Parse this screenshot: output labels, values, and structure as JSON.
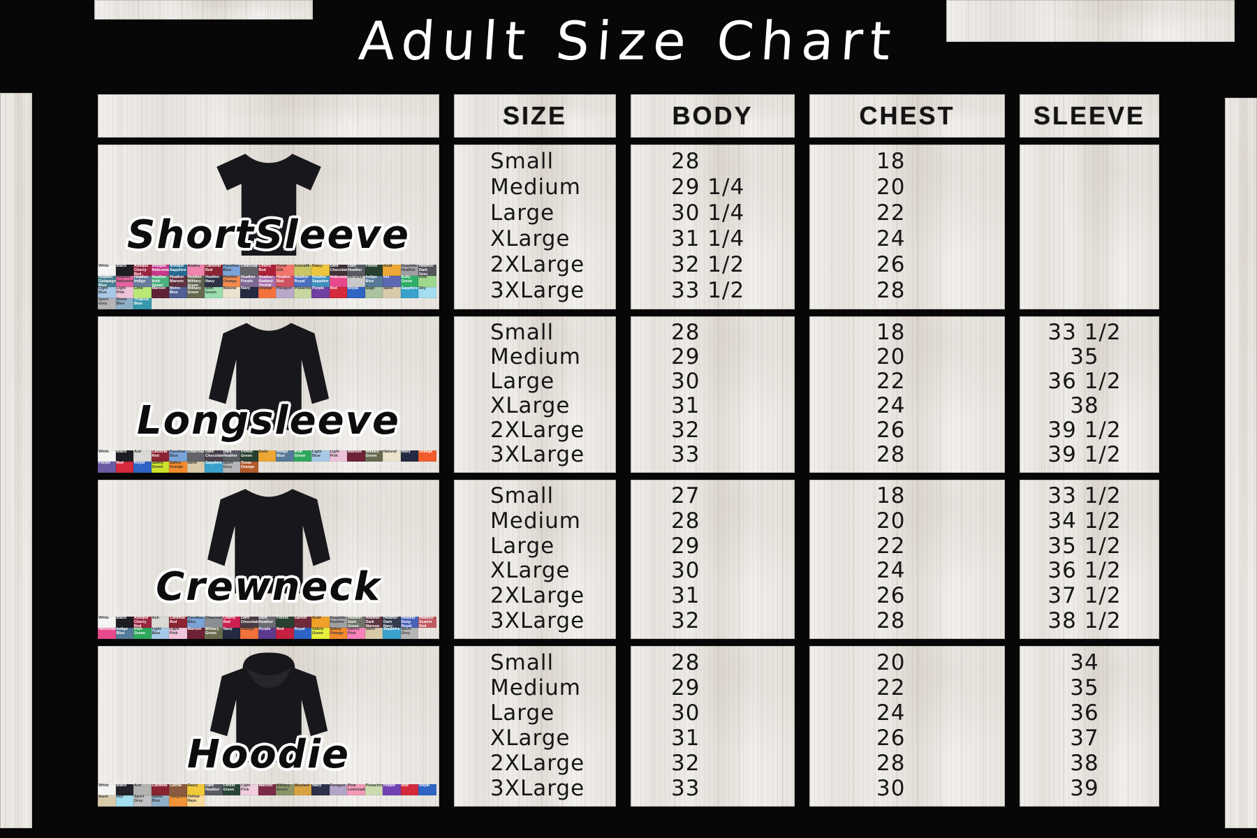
{
  "title": "Adult Size Chart",
  "columns": {
    "size": "SIZE",
    "body": "BODY",
    "chest": "CHEST",
    "sleeve": "SLEEVE"
  },
  "products": [
    {
      "name": "ShortSleeve",
      "garment": "tshirt",
      "garment_icon": "short-sleeve-tee-icon",
      "rows": [
        {
          "size": "Small",
          "body": "28",
          "chest": "18",
          "sleeve": ""
        },
        {
          "size": "Medium",
          "body": "29 1/4",
          "chest": "20",
          "sleeve": ""
        },
        {
          "size": "Large",
          "body": "30 1/4",
          "chest": "22",
          "sleeve": ""
        },
        {
          "size": "XLarge",
          "body": "31 1/4",
          "chest": "24",
          "sleeve": ""
        },
        {
          "size": "2XLarge",
          "body": "32 1/2",
          "chest": "26",
          "sleeve": ""
        },
        {
          "size": "3XLarge",
          "body": "33 1/2",
          "chest": "28",
          "sleeve": ""
        }
      ],
      "swatches": [
        {
          "label": "White",
          "color": "#f4f4f2"
        },
        {
          "label": "Black",
          "color": "#1d1d23"
        },
        {
          "label": "Antique Cherry Red",
          "color": "#992740"
        },
        {
          "label": "Antique Heliconia",
          "color": "#c53a8a"
        },
        {
          "label": "Antique Sapphire",
          "color": "#266a92"
        },
        {
          "label": "Azalea",
          "color": "#ef85ac"
        },
        {
          "label": "Cardinal Red",
          "color": "#8a2432"
        },
        {
          "label": "Carolina Blue",
          "color": "#7aa3d8"
        },
        {
          "label": "Charcoal",
          "color": "#63646a"
        },
        {
          "label": "Cherry Red",
          "color": "#ab2038"
        },
        {
          "label": "Coral Silk",
          "color": "#f4756c"
        },
        {
          "label": "Cornsilk",
          "color": "#c9c565"
        },
        {
          "label": "Daisy",
          "color": "#eec63e"
        },
        {
          "label": "Dark Chocolate",
          "color": "#413138"
        },
        {
          "label": "Dark Heather",
          "color": "#585a62"
        },
        {
          "label": "Forest",
          "color": "#27402f"
        },
        {
          "label": "Gold",
          "color": "#eda736"
        },
        {
          "label": "Graphite Heather",
          "color": "#9fa0a4"
        },
        {
          "label": "Heather Dark Grey",
          "color": "#54555c"
        },
        {
          "label": "Heather Galapagos Blue",
          "color": "#47808f"
        },
        {
          "label": "Heather Heliconia",
          "color": "#e2649e"
        },
        {
          "label": "Heather Indigo",
          "color": "#687c9e"
        },
        {
          "label": "Heather Irish Green",
          "color": "#4bb07c"
        },
        {
          "label": "Heather Maroon",
          "color": "#61323f"
        },
        {
          "label": "Heather Military Green",
          "color": "#60644f"
        },
        {
          "label": "Heather Navy",
          "color": "#2c3145"
        },
        {
          "label": "Heather Orange",
          "color": "#f18a4d"
        },
        {
          "label": "Heather Purple",
          "color": "#7f6a94"
        },
        {
          "label": "Heather Radiant Orchid",
          "color": "#a96fab"
        },
        {
          "label": "Heather Red",
          "color": "#cf5260"
        },
        {
          "label": "Heather Royal",
          "color": "#4a70bf"
        },
        {
          "label": "Heather Sapphire",
          "color": "#3f90bd"
        },
        {
          "label": "Heliconia",
          "color": "#e8488c"
        },
        {
          "label": "Ice Grey",
          "color": "#c9c9c9"
        },
        {
          "label": "Indigo Blue",
          "color": "#567a98"
        },
        {
          "label": "Iris",
          "color": "#5c68b2"
        },
        {
          "label": "Kelly Green",
          "color": "#2fae68"
        },
        {
          "label": "Kiwi",
          "color": "#9ed88d"
        },
        {
          "label": "Light Blue",
          "color": "#a7c9e7"
        },
        {
          "label": "Light Pink",
          "color": "#edc3d9"
        },
        {
          "label": "Lime",
          "color": "#b9e877"
        },
        {
          "label": "Maroon",
          "color": "#5e2136"
        },
        {
          "label": "Metro Blue",
          "color": "#4f5f94"
        },
        {
          "label": "Military Green",
          "color": "#656a4f"
        },
        {
          "label": "Mint Green",
          "color": "#99dcae"
        },
        {
          "label": "Natural",
          "color": "#ece2cd"
        },
        {
          "label": "Navy",
          "color": "#232a41"
        },
        {
          "label": "Orange",
          "color": "#f3713a"
        },
        {
          "label": "Paragon",
          "color": "#b9a8c9"
        },
        {
          "label": "Pistachio",
          "color": "#c7d6a1"
        },
        {
          "label": "Purple",
          "color": "#7041a0"
        },
        {
          "label": "Red",
          "color": "#d42a3c"
        },
        {
          "label": "Royal",
          "color": "#2f63c4"
        },
        {
          "label": "Sage",
          "color": "#aac3a0"
        },
        {
          "label": "Sand",
          "color": "#d8cbaa"
        },
        {
          "label": "Sapphire",
          "color": "#39a1cc"
        },
        {
          "label": "Sky",
          "color": "#a2ddf0"
        },
        {
          "label": "Sport Grey",
          "color": "#b5b5b8"
        },
        {
          "label": "Stone Blue",
          "color": "#8fb0c8"
        },
        {
          "label": "Tropical Blue",
          "color": "#3698ac"
        }
      ]
    },
    {
      "name": "Longsleeve",
      "garment": "longsleeve",
      "garment_icon": "long-sleeve-tee-icon",
      "rows": [
        {
          "size": "Small",
          "body": "28",
          "chest": "18",
          "sleeve": "33 1/2"
        },
        {
          "size": "Medium",
          "body": "29",
          "chest": "20",
          "sleeve": "35"
        },
        {
          "size": "Large",
          "body": "30",
          "chest": "22",
          "sleeve": "36 1/2"
        },
        {
          "size": "XLarge",
          "body": "31",
          "chest": "24",
          "sleeve": "38"
        },
        {
          "size": "2XLarge",
          "body": "32",
          "chest": "26",
          "sleeve": "39 1/2"
        },
        {
          "size": "3XLarge",
          "body": "33",
          "chest": "28",
          "sleeve": "39 1/2"
        }
      ],
      "swatches": [
        {
          "label": "White",
          "color": "#f4f4f2"
        },
        {
          "label": "Black",
          "color": "#1d1d23"
        },
        {
          "label": "Ash",
          "color": "#d9d9d5"
        },
        {
          "label": "Cardinal Red",
          "color": "#8a2432"
        },
        {
          "label": "Carolina Blue",
          "color": "#7aa3d8"
        },
        {
          "label": "Charcoal",
          "color": "#63646a"
        },
        {
          "label": "Dark Chocolate",
          "color": "#48404a"
        },
        {
          "label": "Dark Heather",
          "color": "#585a62"
        },
        {
          "label": "Forest Green",
          "color": "#27402f"
        },
        {
          "label": "Gold",
          "color": "#eda736"
        },
        {
          "label": "Indigo Blue",
          "color": "#567a98"
        },
        {
          "label": "Irish Green",
          "color": "#2fa75c"
        },
        {
          "label": "Light Blue",
          "color": "#a7c9e7"
        },
        {
          "label": "Light Pink",
          "color": "#edc3d9"
        },
        {
          "label": "Maroon",
          "color": "#6e2236"
        },
        {
          "label": "Military Green",
          "color": "#656a4f"
        },
        {
          "label": "Natural",
          "color": "#ece2cd"
        },
        {
          "label": "Navy",
          "color": "#232a41"
        },
        {
          "label": "Orange",
          "color": "#f05c2c"
        },
        {
          "label": "Purple",
          "color": "#6a5aa2"
        },
        {
          "label": "Red",
          "color": "#d42a3c"
        },
        {
          "label": "Royal",
          "color": "#2f63c4"
        },
        {
          "label": "Safety Green",
          "color": "#cde22f"
        },
        {
          "label": "Safety Orange",
          "color": "#f68a2c"
        },
        {
          "label": "Sand",
          "color": "#d8cbaa"
        },
        {
          "label": "Sapphire",
          "color": "#39a1cc"
        },
        {
          "label": "Sport Grey",
          "color": "#b5b5b8"
        },
        {
          "label": "Texas Orange",
          "color": "#b25b2b"
        }
      ]
    },
    {
      "name": "Crewneck",
      "garment": "crewneck",
      "garment_icon": "crewneck-sweatshirt-icon",
      "rows": [
        {
          "size": "Small",
          "body": "27",
          "chest": "18",
          "sleeve": "33 1/2"
        },
        {
          "size": "Medium",
          "body": "28",
          "chest": "20",
          "sleeve": "34 1/2"
        },
        {
          "size": "Large",
          "body": "29",
          "chest": "22",
          "sleeve": "35 1/2"
        },
        {
          "size": "XLarge",
          "body": "30",
          "chest": "24",
          "sleeve": "36 1/2"
        },
        {
          "size": "2XLarge",
          "body": "31",
          "chest": "26",
          "sleeve": "37 1/2"
        },
        {
          "size": "3XLarge",
          "body": "32",
          "chest": "28",
          "sleeve": "38 1/2"
        }
      ],
      "swatches": [
        {
          "label": "White",
          "color": "#f4f4f2"
        },
        {
          "label": "Black",
          "color": "#1d1d23"
        },
        {
          "label": "Antique Cherry Red",
          "color": "#992740"
        },
        {
          "label": "Ash",
          "color": "#d9d9d5"
        },
        {
          "label": "Cardinal Red",
          "color": "#8a2432"
        },
        {
          "label": "Carolina Blue",
          "color": "#7aa3d8"
        },
        {
          "label": "Charcoal",
          "color": "#8a8d92"
        },
        {
          "label": "Cherry Red",
          "color": "#ce2050"
        },
        {
          "label": "Dark Chocolate",
          "color": "#4a3a42"
        },
        {
          "label": "Dark Heather",
          "color": "#6b6b73"
        },
        {
          "label": "Forest",
          "color": "#27402f"
        },
        {
          "label": "Garnet",
          "color": "#702a3a"
        },
        {
          "label": "Gold",
          "color": "#f0a028"
        },
        {
          "label": "Graphite Heather",
          "color": "#9fa0a4"
        },
        {
          "label": "Heather Dark Green",
          "color": "#6f7468"
        },
        {
          "label": "Heather Dark Maroon",
          "color": "#5e3442"
        },
        {
          "label": "Heather Dark Navy",
          "color": "#333b4e"
        },
        {
          "label": "Heather Deep Royal",
          "color": "#4a63b8"
        },
        {
          "label": "Heather Scarlet Red",
          "color": "#c25a62"
        },
        {
          "label": "Heliconia",
          "color": "#e8488c"
        },
        {
          "label": "Indigo Blue",
          "color": "#567a98"
        },
        {
          "label": "Irish Green",
          "color": "#2fa75c"
        },
        {
          "label": "Light Blue",
          "color": "#a7c9e7"
        },
        {
          "label": "Light Pink",
          "color": "#f2c4dc"
        },
        {
          "label": "Maroon",
          "color": "#6e2236"
        },
        {
          "label": "Military Green",
          "color": "#6b6b50"
        },
        {
          "label": "Navy",
          "color": "#232a41"
        },
        {
          "label": "Orange",
          "color": "#f3713a"
        },
        {
          "label": "Purple",
          "color": "#5b3b8e"
        },
        {
          "label": "Red",
          "color": "#c42040"
        },
        {
          "label": "Royal",
          "color": "#2f63c4"
        },
        {
          "label": "Safety Green",
          "color": "#e5ef3c"
        },
        {
          "label": "Safety Orange",
          "color": "#f68a2c"
        },
        {
          "label": "Safety Pink",
          "color": "#f781b8"
        },
        {
          "label": "Sand",
          "color": "#d8cbaa"
        },
        {
          "label": "Sapphire",
          "color": "#39a1cc"
        },
        {
          "label": "Sport Grey",
          "color": "#b5b5b8"
        }
      ]
    },
    {
      "name": "Hoodie",
      "garment": "hoodie",
      "garment_icon": "hoodie-icon",
      "rows": [
        {
          "size": "Small",
          "body": "28",
          "chest": "20",
          "sleeve": "34"
        },
        {
          "size": "Medium",
          "body": "29",
          "chest": "22",
          "sleeve": "35"
        },
        {
          "size": "Large",
          "body": "30",
          "chest": "24",
          "sleeve": "36"
        },
        {
          "size": "XLarge",
          "body": "31",
          "chest": "26",
          "sleeve": "37"
        },
        {
          "size": "2XLarge",
          "body": "32",
          "chest": "28",
          "sleeve": "38"
        },
        {
          "size": "3XLarge",
          "body": "33",
          "chest": "30",
          "sleeve": "39"
        }
      ],
      "swatches": [
        {
          "label": "White",
          "color": "#f4f4f2"
        },
        {
          "label": "Black",
          "color": "#22222a"
        },
        {
          "label": "Ash",
          "color": "#b2b2b0"
        },
        {
          "label": "Cardinal",
          "color": "#8a2432"
        },
        {
          "label": "Cocoa",
          "color": "#8b5a3f"
        },
        {
          "label": "Daisy",
          "color": "#f0ca3a"
        },
        {
          "label": "Dark Heather",
          "color": "#5a5a64"
        },
        {
          "label": "Forest Green",
          "color": "#2b4636"
        },
        {
          "label": "Light Pink",
          "color": "#f0cede"
        },
        {
          "label": "Maroon",
          "color": "#7a2a44"
        },
        {
          "label": "Military Green",
          "color": "#8a9668"
        },
        {
          "label": "Mustard",
          "color": "#d8a243"
        },
        {
          "label": "Navy",
          "color": "#2a3148"
        },
        {
          "label": "Paragon",
          "color": "#b2a4c6"
        },
        {
          "label": "Pink Lemonade",
          "color": "#f29ab8"
        },
        {
          "label": "Pistachio",
          "color": "#ccdcb0"
        },
        {
          "label": "Purple",
          "color": "#7141b2"
        },
        {
          "label": "Red",
          "color": "#d42a3c"
        },
        {
          "label": "Royal",
          "color": "#2f63c4"
        },
        {
          "label": "Sand",
          "color": "#d8cbaa"
        },
        {
          "label": "Sky",
          "color": "#a2ddf0"
        },
        {
          "label": "Sport Grey",
          "color": "#c1c1c4"
        },
        {
          "label": "Stone Blue",
          "color": "#8fb0c8"
        },
        {
          "label": "Tangerine",
          "color": "#f09238"
        },
        {
          "label": "Yellow Haze",
          "color": "#f8da9a"
        }
      ]
    }
  ],
  "chart_data": {
    "type": "table",
    "title": "Adult Size Chart",
    "columns": [
      "SIZE",
      "BODY",
      "CHEST",
      "SLEEVE"
    ],
    "tables": [
      {
        "product": "ShortSleeve",
        "rows": [
          [
            "Small",
            "28",
            "18",
            ""
          ],
          [
            "Medium",
            "29 1/4",
            "20",
            ""
          ],
          [
            "Large",
            "30 1/4",
            "22",
            ""
          ],
          [
            "XLarge",
            "31 1/4",
            "24",
            ""
          ],
          [
            "2XLarge",
            "32 1/2",
            "26",
            ""
          ],
          [
            "3XLarge",
            "33 1/2",
            "28",
            ""
          ]
        ]
      },
      {
        "product": "Longsleeve",
        "rows": [
          [
            "Small",
            "28",
            "18",
            "33 1/2"
          ],
          [
            "Medium",
            "29",
            "20",
            "35"
          ],
          [
            "Large",
            "30",
            "22",
            "36 1/2"
          ],
          [
            "XLarge",
            "31",
            "24",
            "38"
          ],
          [
            "2XLarge",
            "32",
            "26",
            "39 1/2"
          ],
          [
            "3XLarge",
            "33",
            "28",
            "39 1/2"
          ]
        ]
      },
      {
        "product": "Crewneck",
        "rows": [
          [
            "Small",
            "27",
            "18",
            "33 1/2"
          ],
          [
            "Medium",
            "28",
            "20",
            "34 1/2"
          ],
          [
            "Large",
            "29",
            "22",
            "35 1/2"
          ],
          [
            "XLarge",
            "30",
            "24",
            "36 1/2"
          ],
          [
            "2XLarge",
            "31",
            "26",
            "37 1/2"
          ],
          [
            "3XLarge",
            "32",
            "28",
            "38 1/2"
          ]
        ]
      },
      {
        "product": "Hoodie",
        "rows": [
          [
            "Small",
            "28",
            "20",
            "34"
          ],
          [
            "Medium",
            "29",
            "22",
            "35"
          ],
          [
            "Large",
            "30",
            "24",
            "36"
          ],
          [
            "XLarge",
            "31",
            "26",
            "37"
          ],
          [
            "2XLarge",
            "32",
            "28",
            "38"
          ],
          [
            "3XLarge",
            "33",
            "30",
            "39"
          ]
        ]
      }
    ]
  }
}
